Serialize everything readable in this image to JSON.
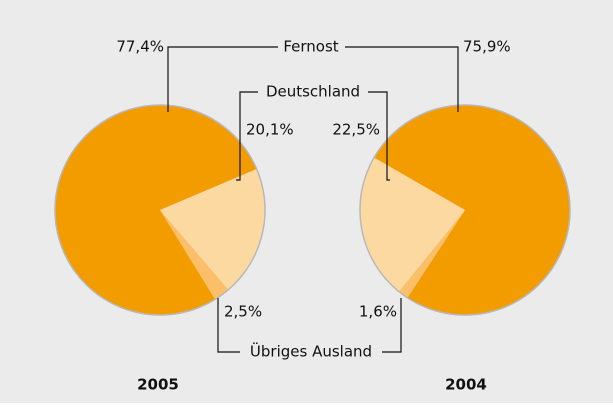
{
  "chart_data": {
    "type": "pie",
    "categories": [
      "Fernost",
      "Deutschland",
      "Übriges Ausland"
    ],
    "colors": [
      "#f39c00",
      "#fdd9a2",
      "#fbbf6a"
    ],
    "pies": [
      {
        "title": "2005",
        "values": [
          77.4,
          20.1,
          2.5
        ],
        "value_labels": [
          "77,4%",
          "20,1%",
          "2,5%"
        ]
      },
      {
        "title": "2004",
        "values": [
          75.9,
          22.5,
          1.6
        ],
        "value_labels": [
          "75,9%",
          "22,5%",
          "1,6%"
        ]
      }
    ]
  }
}
